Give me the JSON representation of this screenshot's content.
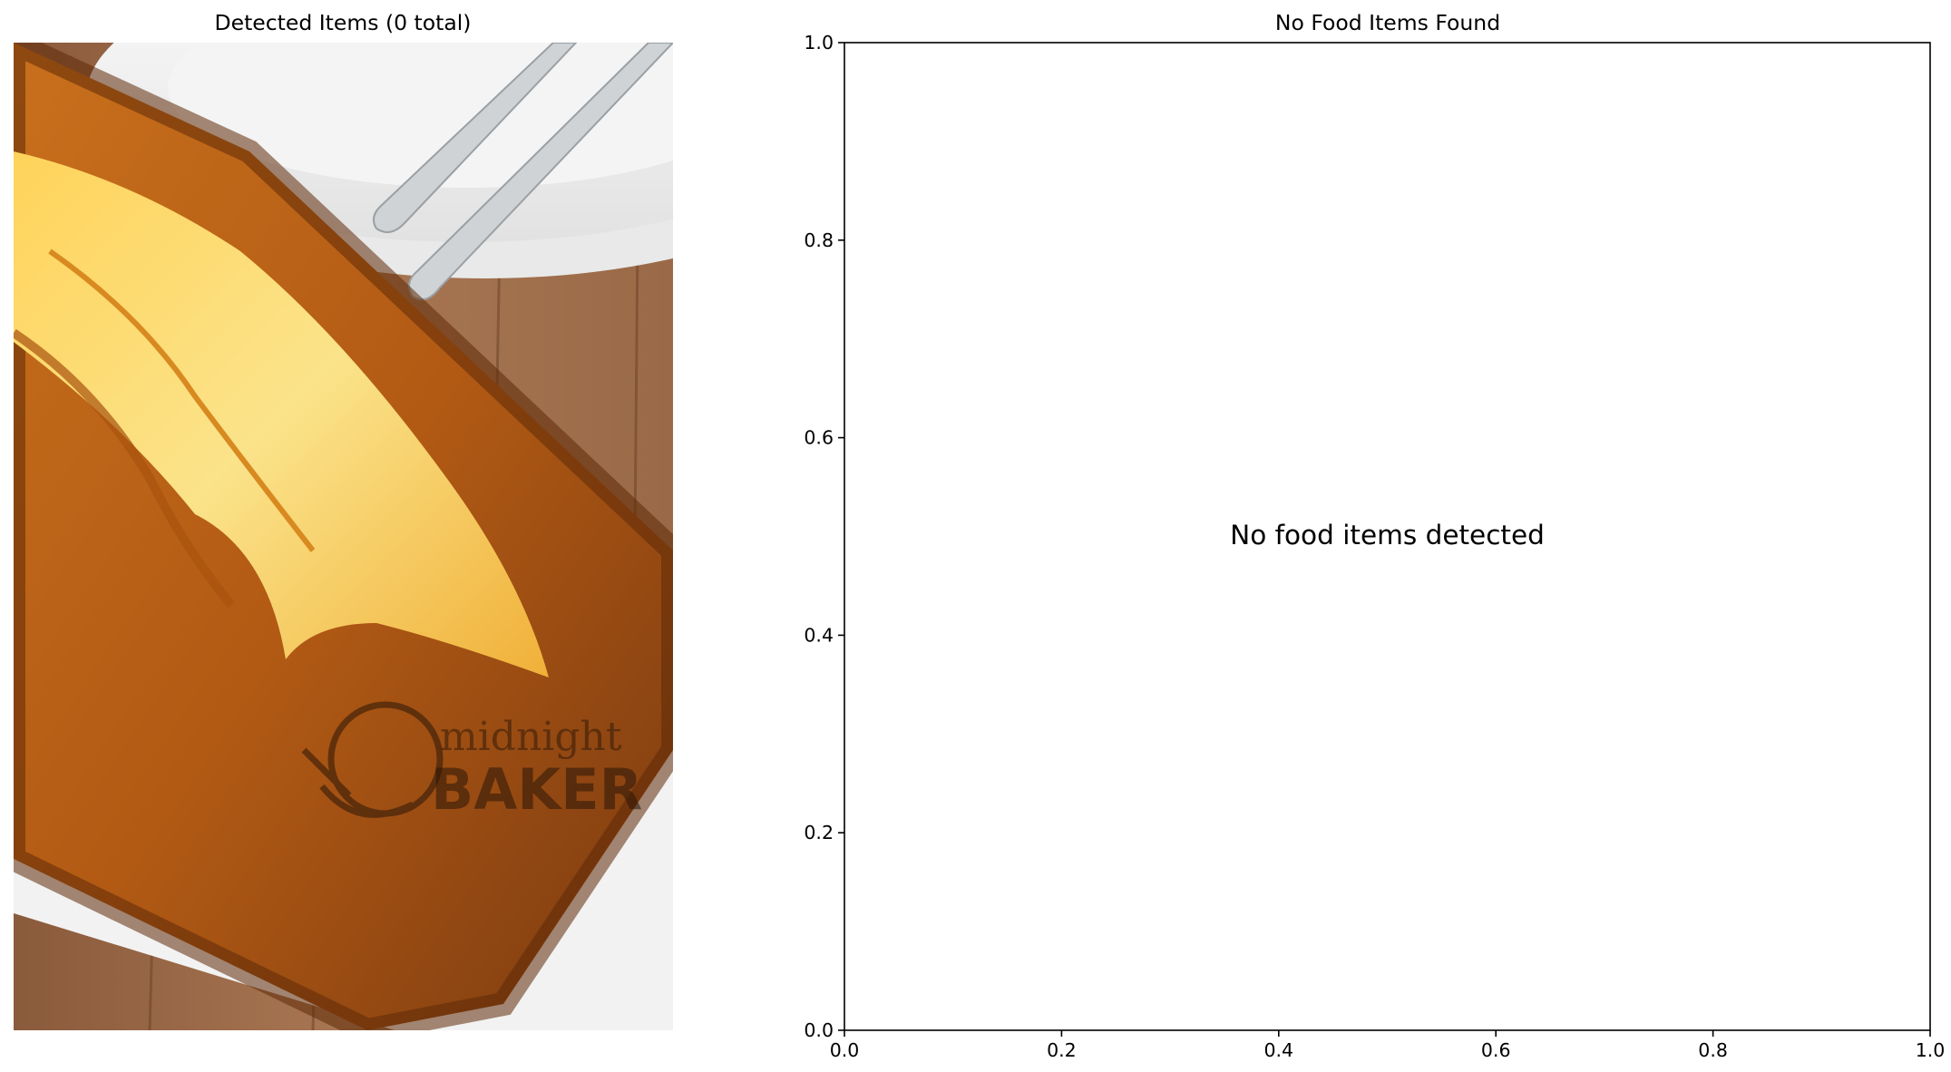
{
  "left_panel": {
    "title": "Detected Items (0 total)",
    "image": {
      "subject": "loaf of pound cake on a white platter beside plates and spoons",
      "watermark_text": "the midnight BAKER"
    }
  },
  "chart_data": {
    "type": "scatter",
    "title": "No Food Items Found",
    "xlabel": "",
    "ylabel": "",
    "xlim": [
      0.0,
      1.0
    ],
    "ylim": [
      0.0,
      1.0
    ],
    "x_ticks": [
      "0.0",
      "0.2",
      "0.4",
      "0.6",
      "0.8",
      "1.0"
    ],
    "y_ticks": [
      "0.0",
      "0.2",
      "0.4",
      "0.6",
      "0.8",
      "1.0"
    ],
    "series": [],
    "grid": false,
    "annotations": [
      {
        "text": "No food items detected",
        "x": 0.5,
        "y": 0.5
      }
    ]
  }
}
